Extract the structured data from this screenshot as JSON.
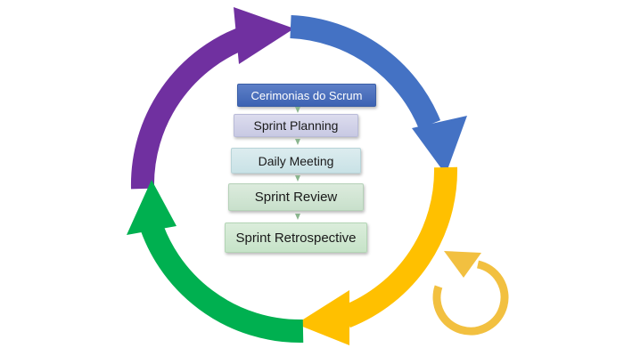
{
  "diagram": {
    "steps": [
      "Cerimonias do Scrum",
      "Sprint Planning",
      "Daily Meeting",
      "Sprint Review",
      "Sprint Retrospective"
    ]
  },
  "colors": {
    "purple_arrow": "#7030A0",
    "blue_arrow": "#4472C4",
    "yellow_arrow": "#FFC000",
    "green_arrow": "#00B050",
    "small_cycle_arrow": "#F2C040",
    "title_box": "#4A6FBD",
    "connector": "#8ab58e"
  }
}
